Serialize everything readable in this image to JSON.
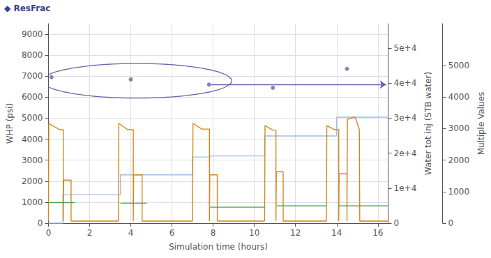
{
  "chart_data": {
    "type": "line",
    "annotations": [
      "◆ ResFrac"
    ],
    "xlabel": "Simulation time (hours)",
    "ylabel": "WHP (psi)",
    "y2label": "Water tot inj (STB water)",
    "y3label": "Multiple Values",
    "xlim": [
      0,
      16.5
    ],
    "xticks": [
      0,
      2,
      4,
      6,
      8,
      10,
      12,
      14,
      16
    ],
    "ylim": [
      0,
      9500
    ],
    "yticks": [
      0,
      1000,
      2000,
      3000,
      4000,
      5000,
      6000,
      7000,
      8000,
      9000
    ],
    "y2lim": [
      0,
      57000
    ],
    "y2ticks": [
      0,
      {
        "value": 10000,
        "label": "1e+4"
      },
      {
        "value": 20000,
        "label": "2e+4"
      },
      {
        "value": 30000,
        "label": "3e+4"
      },
      {
        "value": 40000,
        "label": "4e+4"
      },
      {
        "value": 50000,
        "label": "5e+4"
      }
    ],
    "y3lim": [
      0,
      6330
    ],
    "y3ticks": [
      0,
      1000,
      2000,
      3000,
      4000,
      5000
    ],
    "grid": true,
    "series": [
      {
        "type": "line",
        "color": "#a0bfe0",
        "x": [
          0,
          0.7,
          0.7,
          1.25,
          1.25,
          3.5,
          3.5,
          4.5,
          4.5,
          7.0,
          7.0,
          7.85,
          7.85,
          10.5,
          10.5,
          11.0,
          11.0,
          13.6,
          13.6,
          14.0,
          14.0,
          16.5
        ],
        "values": [
          0,
          0,
          1350,
          1350,
          1350,
          1350,
          2300,
          2300,
          2300,
          2300,
          3150,
          3150,
          3200,
          3200,
          4150,
          4150,
          4150,
          4150,
          4150,
          4150,
          5050,
          5050
        ]
      },
      {
        "type": "line",
        "color": "#d4871a",
        "x": [
          0.0,
          0.02,
          0.02,
          0.55,
          0.55,
          0.72,
          0.72,
          0.74,
          0.74,
          1.1,
          1.1,
          1.3,
          1.3,
          3.4
        ],
        "values": [
          100,
          100,
          4750,
          4450,
          4450,
          4450,
          100,
          100,
          2050,
          2050,
          100,
          100,
          100,
          100
        ]
      },
      {
        "type": "line",
        "color": "#d4871a",
        "x": [
          3.4,
          3.42,
          3.42,
          3.85,
          3.85,
          4.12,
          4.12,
          4.14,
          4.14,
          4.55,
          4.55,
          4.8,
          4.8,
          7.0
        ],
        "values": [
          100,
          100,
          4750,
          4450,
          4450,
          4450,
          100,
          100,
          2300,
          2300,
          100,
          100,
          100,
          100
        ]
      },
      {
        "type": "line",
        "color": "#d4871a",
        "x": [
          7.0,
          7.02,
          7.02,
          7.45,
          7.45,
          7.82,
          7.82,
          7.84,
          7.84,
          8.2,
          8.2,
          8.5,
          8.5,
          10.5
        ],
        "values": [
          100,
          100,
          4750,
          4480,
          4480,
          4480,
          100,
          100,
          2300,
          2300,
          100,
          100,
          100,
          100
        ]
      },
      {
        "type": "line",
        "color": "#d4871a",
        "x": [
          10.5,
          10.52,
          10.52,
          10.9,
          10.9,
          11.05,
          11.05,
          11.07,
          11.07,
          11.4,
          11.4,
          11.7,
          11.7,
          13.5
        ],
        "values": [
          100,
          100,
          4650,
          4430,
          4430,
          4430,
          100,
          100,
          2450,
          2450,
          100,
          100,
          100,
          100
        ]
      },
      {
        "type": "line",
        "color": "#d4871a",
        "x": [
          13.5,
          13.52,
          13.52,
          13.9,
          13.9,
          14.1,
          14.1,
          14.12,
          14.12,
          14.5,
          14.5,
          14.52,
          14.52,
          14.9,
          14.9,
          15.1,
          15.1,
          15.12,
          15.12,
          15.5,
          15.5,
          16.5
        ],
        "values": [
          100,
          100,
          4650,
          4450,
          4450,
          4450,
          100,
          100,
          2350,
          2350,
          100,
          100,
          4950,
          5050,
          5050,
          4450,
          4450,
          100,
          100,
          100,
          100,
          100
        ]
      },
      {
        "type": "line",
        "color": "#48a848",
        "x": [
          0.0,
          1.28
        ],
        "values": [
          980,
          980
        ]
      },
      {
        "type": "line",
        "color": "#48a848",
        "x": [
          3.5,
          4.78
        ],
        "values": [
          950,
          950
        ]
      },
      {
        "type": "line",
        "color": "#48a848",
        "x": [
          7.85,
          10.5
        ],
        "values": [
          760,
          760
        ]
      },
      {
        "type": "line",
        "color": "#48a848",
        "x": [
          11.08,
          13.5
        ],
        "values": [
          820,
          820
        ]
      },
      {
        "type": "line",
        "color": "#48a848",
        "x": [
          14.12,
          16.5
        ],
        "values": [
          820,
          820
        ]
      },
      {
        "type": "scatter",
        "color": "#7060a8",
        "x": [
          0.15,
          4.0,
          7.8,
          10.9,
          14.5
        ],
        "values": [
          6950,
          6850,
          6600,
          6450,
          7350
        ]
      }
    ],
    "arrow": {
      "x_start": 7.9,
      "x_end": 16.4,
      "y": 6600,
      "color": "#7060a8"
    },
    "ellipse": {
      "cx": 4.3,
      "cy": 6780,
      "width": 9.2,
      "height": 1650,
      "color": "#7060a8"
    }
  }
}
